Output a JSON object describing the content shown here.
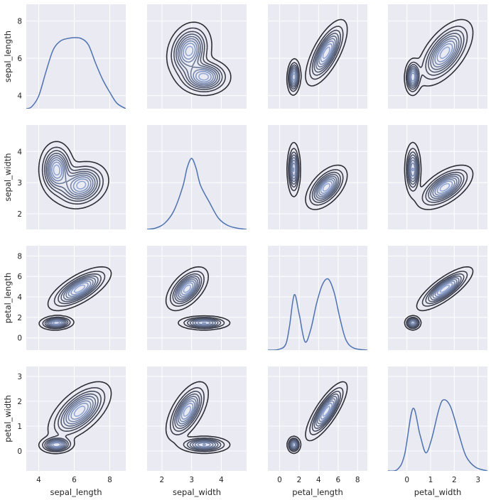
{
  "chart_data": {
    "type": "pairgrid-kde",
    "variables": [
      "sepal_length",
      "sepal_width",
      "petal_length",
      "petal_width"
    ],
    "axes": {
      "sepal_length": {
        "lim": [
          3.3,
          8.9
        ],
        "ticks": [
          4,
          6,
          8
        ]
      },
      "sepal_width": {
        "lim": [
          1.5,
          4.85
        ],
        "ticks": [
          2,
          3,
          4
        ]
      },
      "petal_length": {
        "lim": [
          -1.2,
          9.0
        ],
        "ticks": [
          0,
          2,
          4,
          6,
          8
        ]
      },
      "petal_width": {
        "lim": [
          -0.8,
          3.4
        ],
        "ticks": [
          0,
          1,
          2,
          3
        ]
      }
    },
    "tick_labels": {
      "sepal_length": [
        "4",
        "6",
        "8"
      ],
      "sepal_width": [
        "2",
        "3",
        "4"
      ],
      "petal_length": [
        "0",
        "2",
        "4",
        "6",
        "8"
      ],
      "petal_width": [
        "0",
        "1",
        "2",
        "3"
      ]
    },
    "diagonal_kde": {
      "sepal_length": [
        [
          3.3,
          0.0
        ],
        [
          3.6,
          0.01
        ],
        [
          4.0,
          0.07
        ],
        [
          4.4,
          0.2
        ],
        [
          4.8,
          0.32
        ],
        [
          5.2,
          0.37
        ],
        [
          5.6,
          0.385
        ],
        [
          6.0,
          0.39
        ],
        [
          6.4,
          0.385
        ],
        [
          6.8,
          0.35
        ],
        [
          7.2,
          0.25
        ],
        [
          7.6,
          0.16
        ],
        [
          8.0,
          0.09
        ],
        [
          8.4,
          0.03
        ],
        [
          8.9,
          0.0
        ]
      ],
      "sepal_width": [
        [
          1.5,
          0.0
        ],
        [
          1.8,
          0.02
        ],
        [
          2.1,
          0.09
        ],
        [
          2.4,
          0.26
        ],
        [
          2.7,
          0.6
        ],
        [
          2.85,
          0.87
        ],
        [
          3.0,
          1.0
        ],
        [
          3.15,
          0.86
        ],
        [
          3.3,
          0.62
        ],
        [
          3.6,
          0.38
        ],
        [
          3.9,
          0.16
        ],
        [
          4.2,
          0.06
        ],
        [
          4.5,
          0.02
        ],
        [
          4.85,
          0.0
        ]
      ],
      "petal_length": [
        [
          -1.2,
          0.0
        ],
        [
          -0.2,
          0.005
        ],
        [
          0.6,
          0.05
        ],
        [
          1.0,
          0.22
        ],
        [
          1.5,
          0.53
        ],
        [
          2.0,
          0.35
        ],
        [
          2.6,
          0.08
        ],
        [
          3.2,
          0.2
        ],
        [
          3.8,
          0.45
        ],
        [
          4.4,
          0.63
        ],
        [
          5.0,
          0.68
        ],
        [
          5.6,
          0.55
        ],
        [
          6.2,
          0.3
        ],
        [
          6.8,
          0.1
        ],
        [
          7.6,
          0.02
        ],
        [
          9.0,
          0.0
        ]
      ],
      "petal_width": [
        [
          -0.8,
          0.0
        ],
        [
          -0.4,
          0.02
        ],
        [
          -0.1,
          0.22
        ],
        [
          0.25,
          0.86
        ],
        [
          0.55,
          0.5
        ],
        [
          0.8,
          0.25
        ],
        [
          1.05,
          0.45
        ],
        [
          1.35,
          0.85
        ],
        [
          1.55,
          0.98
        ],
        [
          1.85,
          0.88
        ],
        [
          2.2,
          0.5
        ],
        [
          2.5,
          0.2
        ],
        [
          2.9,
          0.05
        ],
        [
          3.4,
          0.0
        ]
      ]
    },
    "density_clusters": {
      "sepal_length|sepal_width": [
        [
          5.0,
          3.42,
          0.42,
          0.38,
          0,
          1.0
        ],
        [
          6.4,
          2.92,
          0.65,
          0.32,
          0.2,
          1.0
        ]
      ],
      "sepal_length|petal_length": [
        [
          5.0,
          1.46,
          0.42,
          0.3,
          0.1,
          1.0
        ],
        [
          6.3,
          4.8,
          0.75,
          0.9,
          0.7,
          1.1
        ]
      ],
      "sepal_length|petal_width": [
        [
          5.0,
          0.25,
          0.42,
          0.15,
          0.05,
          1.0
        ],
        [
          6.3,
          1.6,
          0.75,
          0.5,
          0.6,
          1.1
        ]
      ],
      "sepal_width|petal_length": [
        [
          3.42,
          1.46,
          0.38,
          0.3,
          0.0,
          1.0
        ],
        [
          2.85,
          4.8,
          0.3,
          0.9,
          0.55,
          1.2
        ]
      ],
      "sepal_width|petal_width": [
        [
          3.42,
          0.25,
          0.38,
          0.15,
          0.0,
          1.0
        ],
        [
          2.85,
          1.6,
          0.3,
          0.5,
          0.6,
          1.2
        ]
      ],
      "petal_length|petal_width": [
        [
          1.46,
          0.25,
          0.3,
          0.15,
          0.0,
          1.0
        ],
        [
          4.8,
          1.6,
          0.9,
          0.5,
          0.8,
          1.2
        ]
      ]
    },
    "contour_levels": 9,
    "grid": true,
    "colors": {
      "line": "#4c72b0",
      "contour_low": "#2b2b33",
      "contour_high": "#8fa6d6",
      "panel_bg": "#eaeaf2",
      "grid": "#ffffff"
    }
  }
}
